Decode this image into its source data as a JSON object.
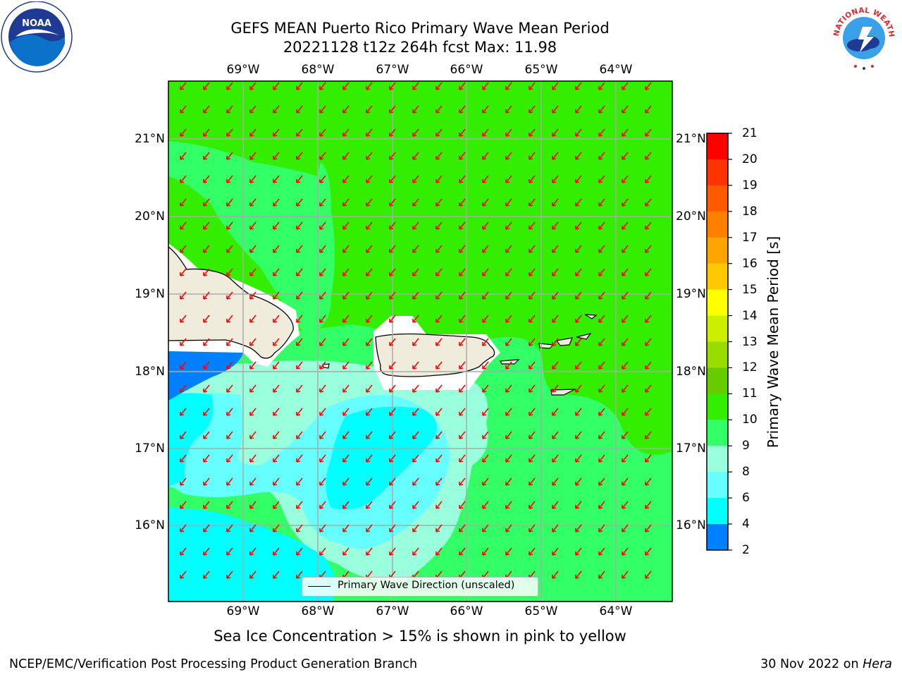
{
  "title": {
    "line1": "GEFS MEAN Puerto Rico Primary Wave Mean Period",
    "line2": "20221128 t12z 264h fcst   Max: 11.98"
  },
  "axes": {
    "lon_ticks": [
      "69°W",
      "68°W",
      "67°W",
      "66°W",
      "65°W",
      "64°W"
    ],
    "lat_ticks": [
      "21°N",
      "20°N",
      "19°N",
      "18°N",
      "17°N",
      "16°N"
    ]
  },
  "colorbar": {
    "title": "Primary Wave Mean Period [s]",
    "labels": [
      "21",
      "20",
      "19",
      "18",
      "17",
      "16",
      "15",
      "14",
      "13",
      "12",
      "11",
      "10",
      "9",
      "8",
      "6",
      "4",
      "2"
    ],
    "colors": [
      "#ff0000",
      "#ff3300",
      "#ff5a00",
      "#ff7f00",
      "#ffa500",
      "#ffc800",
      "#ffff00",
      "#ccee00",
      "#99dd00",
      "#66cc00",
      "#33ee00",
      "#33ff66",
      "#99ffdd",
      "#66ffff",
      "#00ffff",
      "#0080ff",
      "#0000ff"
    ]
  },
  "map_colors": {
    "green": "#33ee00",
    "light_green": "#33ff66",
    "aquamarine": "#99ffdd",
    "light_cyan": "#66ffff",
    "cyan": "#00ffff",
    "blue": "#0080ff",
    "land": "#f0ecdc",
    "arrow": "#ff0000"
  },
  "legend": {
    "label": "Primary Wave Direction (unscaled)"
  },
  "note": "Sea Ice Concentration > 15% is shown in pink to yellow",
  "footer": {
    "left": "NCEP/EMC/Verification Post Processing Product Generation Branch",
    "right_date": "30 Nov 2022 on",
    "right_machine": "Hera"
  },
  "logos": {
    "noaa_text": "NOAA",
    "nws_text": "NATIONAL WEATHER SERVICE"
  }
}
